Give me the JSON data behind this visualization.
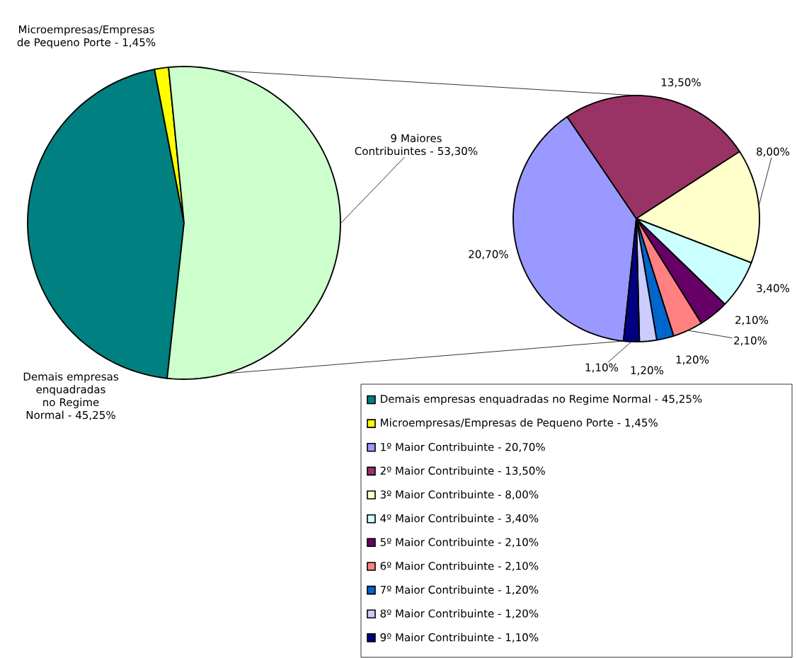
{
  "chart_data": [
    {
      "type": "pie",
      "categories": [
        "Demais empresas enquadradas no Regime Normal - 45,25%",
        "Microempresas/Empresas de Pequeno Porte - 1,45%",
        "9 Maiores Contribuintes - 53,30%"
      ],
      "values": [
        45.25,
        1.45,
        53.3
      ],
      "colors": [
        "#008080",
        "#ffff00",
        "#ccffcc"
      ],
      "legend": "bottom right"
    },
    {
      "type": "pie",
      "categories": [
        "1º Maior Contribuinte - 20,70%",
        "2º Maior Contribuinte - 13,50%",
        "3º Maior Contribuinte - 8,00%",
        "4º Maior Contribuinte - 3,40%",
        "5º Maior Contribuinte - 2,10%",
        "6º Maior Contribuinte - 2,10%",
        "7º Maior Contribuinte - 1,20%",
        "8º Maior Contribuinte - 1,20%",
        "9º Maior Contribuinte - 1,10%"
      ],
      "values": [
        20.7,
        13.5,
        8.0,
        3.4,
        2.1,
        2.1,
        1.2,
        1.2,
        1.1
      ],
      "colors": [
        "#9999ff",
        "#993366",
        "#ffffcc",
        "#ccffff",
        "#660066",
        "#ff8080",
        "#0066cc",
        "#ccccff",
        "#000080"
      ],
      "value_labels": [
        "20,70%",
        "13,50%",
        "8,00%",
        "3,40%",
        "2,10%",
        "2,10%",
        "1,20%",
        "1,20%",
        "1,10%"
      ],
      "legend": "bottom"
    }
  ]
}
